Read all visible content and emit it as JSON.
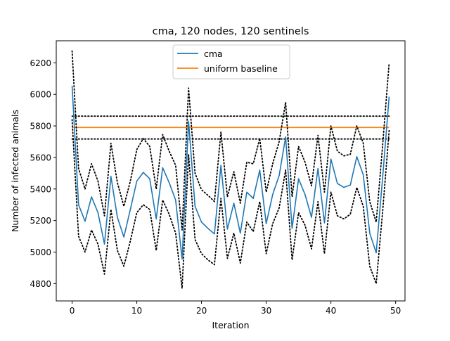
{
  "chart_data": {
    "type": "line",
    "title": "cma, 120 nodes, 120 sentinels",
    "xlabel": "Iteration",
    "ylabel": "Number of infected animals",
    "xlim": [
      -2.45,
      51.45
    ],
    "ylim": [
      4690,
      6340
    ],
    "xticks": [
      0,
      10,
      20,
      30,
      40,
      50
    ],
    "yticks": [
      4800,
      5000,
      5200,
      5400,
      5600,
      5800,
      6000,
      6200
    ],
    "grid": false,
    "legend_position": "upper center",
    "legend": [
      {
        "name": "cma",
        "color": "#1f77b4"
      },
      {
        "name": "uniform baseline",
        "color": "#ff7f0e"
      }
    ],
    "x": [
      0,
      1,
      2,
      3,
      4,
      5,
      6,
      7,
      8,
      9,
      10,
      11,
      12,
      13,
      14,
      15,
      16,
      17,
      18,
      19,
      20,
      21,
      22,
      23,
      24,
      25,
      26,
      27,
      28,
      29,
      30,
      31,
      32,
      33,
      34,
      35,
      36,
      37,
      38,
      39,
      40,
      41,
      42,
      43,
      44,
      45,
      46,
      47,
      48,
      49
    ],
    "series": [
      {
        "name": "cma",
        "color": "#1f77b4",
        "style": "solid",
        "values": [
          6055,
          5300,
          5195,
          5350,
          5250,
          5050,
          5480,
          5220,
          5095,
          5270,
          5450,
          5505,
          5465,
          5210,
          5535,
          5440,
          5330,
          4955,
          5830,
          5290,
          5190,
          5150,
          5115,
          5550,
          5145,
          5310,
          5120,
          5380,
          5340,
          5520,
          5180,
          5365,
          5485,
          5730,
          5150,
          5465,
          5365,
          5220,
          5530,
          5185,
          5590,
          5435,
          5410,
          5425,
          5605,
          5490,
          5120,
          4995,
          5475,
          5985
        ]
      },
      {
        "name": "cma upper bound",
        "color": "#000000",
        "style": "dotted",
        "values": [
          6275,
          5530,
          5400,
          5560,
          5450,
          5230,
          5690,
          5440,
          5290,
          5450,
          5650,
          5720,
          5670,
          5400,
          5745,
          5640,
          5550,
          5140,
          6040,
          5500,
          5395,
          5360,
          5320,
          5760,
          5350,
          5510,
          5310,
          5570,
          5560,
          5720,
          5380,
          5560,
          5700,
          5950,
          5350,
          5670,
          5570,
          5420,
          5740,
          5380,
          5800,
          5640,
          5610,
          5620,
          5800,
          5690,
          5320,
          5190,
          5680,
          6200
        ]
      },
      {
        "name": "cma lower bound",
        "color": "#000000",
        "style": "dotted",
        "values": [
          5840,
          5100,
          5000,
          5140,
          5050,
          4860,
          5270,
          5010,
          4910,
          5070,
          5250,
          5300,
          5270,
          5010,
          5330,
          5240,
          5120,
          4770,
          5620,
          5080,
          4990,
          4950,
          4920,
          5340,
          4960,
          5120,
          4930,
          5190,
          5130,
          5320,
          4990,
          5180,
          5280,
          5520,
          4950,
          5250,
          5170,
          5020,
          5320,
          4990,
          5380,
          5230,
          5210,
          5240,
          5410,
          5290,
          4910,
          4800,
          5260,
          5770
        ]
      }
    ],
    "baseline": {
      "name": "uniform baseline",
      "color": "#ff7f0e",
      "value": 5790,
      "upper": 5862,
      "lower": 5717,
      "x_start": 0,
      "x_end": 49
    }
  }
}
